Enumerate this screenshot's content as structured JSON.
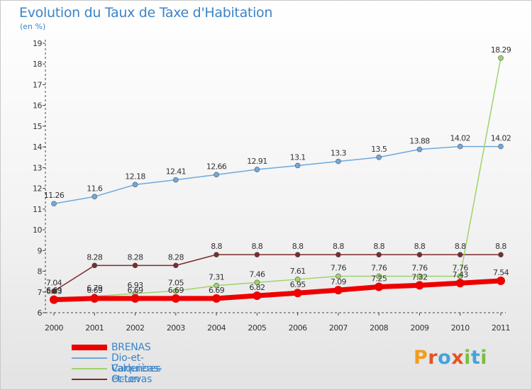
{
  "header": {
    "title": "Evolution du Taux de Taxe d'Habitation",
    "unit": "(en %)"
  },
  "logo": {
    "letters": [
      "P",
      "r",
      "o",
      "x",
      "i",
      "t",
      "i"
    ],
    "colors": [
      "#f29d1f",
      "#e35420",
      "#45a3de",
      "#e35420",
      "#7bbf3f",
      "#45a3de",
      "#7bbf3f"
    ]
  },
  "chart_data": {
    "type": "line",
    "x": [
      "2000",
      "2001",
      "2002",
      "2003",
      "2004",
      "2005",
      "2006",
      "2007",
      "2008",
      "2009",
      "2010",
      "2011"
    ],
    "ylim": [
      6,
      19
    ],
    "yticks": [
      "6",
      "7",
      "8",
      "9",
      "10",
      "11",
      "12",
      "13",
      "14",
      "15",
      "16",
      "17",
      "18",
      "19"
    ],
    "series": [
      {
        "name": "BRENAS",
        "color": "#ee0000",
        "values": [
          6.63,
          6.69,
          6.69,
          6.69,
          6.69,
          6.82,
          6.95,
          7.09,
          7.25,
          7.32,
          7.43,
          7.54
        ],
        "labels": [
          "6.63",
          "6.69",
          "6.69",
          "6.69",
          "6.69",
          "6.82",
          "6.95",
          "7.09",
          "7.25",
          "7.32",
          "7.43",
          "7.54"
        ]
      },
      {
        "name": "Dio-et-Valquières",
        "color": "#6fa8dc",
        "values": [
          11.26,
          11.6,
          12.18,
          12.41,
          12.66,
          12.91,
          13.1,
          13.3,
          13.5,
          13.88,
          14.02,
          14.02
        ],
        "labels": [
          "11.26",
          "11.6",
          "12.18",
          "12.41",
          "12.66",
          "12.91",
          "13.1",
          "13.3",
          "13.5",
          "13.88",
          "14.02",
          "14.02"
        ]
      },
      {
        "name": "Carlencas-et-Levas",
        "color": "#9ed36a",
        "values": [
          6.69,
          6.79,
          6.93,
          7.05,
          7.31,
          7.46,
          7.61,
          7.76,
          7.76,
          7.76,
          7.76,
          18.29
        ],
        "labels": [
          "6.69",
          "6.79",
          "6.93",
          "7.05",
          "7.31",
          "7.46",
          "7.61",
          "7.76",
          "7.76",
          "7.76",
          "7.76",
          "18.29"
        ]
      },
      {
        "name": "Octon",
        "color": "#7b2c2c",
        "values": [
          7.04,
          8.28,
          8.28,
          8.28,
          8.8,
          8.8,
          8.8,
          8.8,
          8.8,
          8.8,
          8.8,
          8.8
        ],
        "labels": [
          "7.04",
          "8.28",
          "8.28",
          "8.28",
          "8.8",
          "8.8",
          "8.8",
          "8.8",
          "8.8",
          "8.8",
          "8.8",
          "8.8"
        ]
      }
    ],
    "grid": false,
    "legend": "bottom-left"
  }
}
